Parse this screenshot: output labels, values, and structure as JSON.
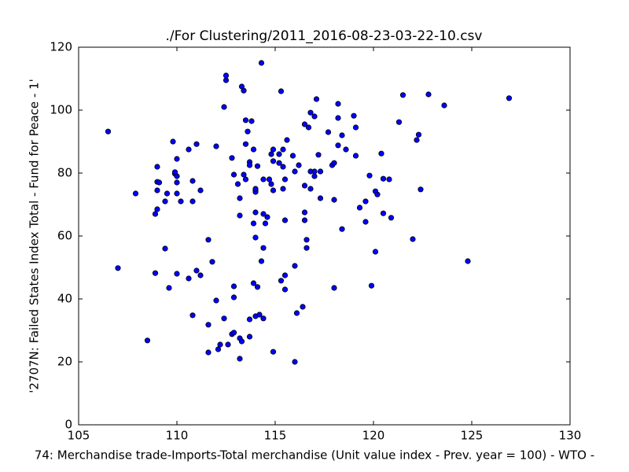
{
  "chart_data": {
    "type": "scatter",
    "title": "./For Clustering/2011_2016-08-23-03-22-10.csv",
    "x_label": "74: Merchandise trade-Imports-Total merchandise (Unit value index - Prev. year = 100) - WTO -",
    "y_label": "'2707N: Failed States Index Total - Fund for Peace - 1'",
    "xlim": [
      105,
      130
    ],
    "xticks": [
      105,
      110,
      115,
      120,
      125,
      130
    ],
    "ylim": [
      0,
      120
    ],
    "yticks": [
      0,
      20,
      40,
      60,
      80,
      100,
      120
    ],
    "color": "#0000ff",
    "edgecolor": "#000000",
    "x": [
      106.5,
      107.0,
      107.9,
      108.5,
      108.9,
      109.0,
      109.0,
      109.0,
      109.1,
      109.0,
      108.9,
      109.4,
      109.4,
      109.5,
      109.6,
      109.8,
      109.9,
      110.0,
      109.9,
      110.0,
      110.0,
      110.0,
      110.2,
      110.0,
      110.6,
      110.6,
      110.8,
      110.8,
      110.8,
      111.0,
      111.0,
      111.2,
      111.2,
      111.6,
      111.6,
      111.8,
      111.6,
      112.0,
      112.0,
      112.1,
      112.2,
      112.4,
      112.4,
      112.5,
      112.5,
      112.6,
      112.8,
      112.8,
      112.9,
      112.9,
      112.9,
      112.9,
      113.1,
      113.2,
      113.2,
      113.2,
      113.3,
      113.2,
      113.3,
      113.4,
      113.4,
      113.5,
      113.5,
      113.5,
      113.6,
      113.7,
      113.7,
      113.7,
      113.7,
      113.8,
      113.9,
      113.9,
      113.9,
      114.0,
      114.0,
      114.0,
      114.0,
      114.0,
      114.0,
      114.1,
      114.1,
      114.2,
      114.3,
      114.3,
      114.4,
      114.4,
      114.4,
      114.4,
      114.5,
      114.6,
      114.7,
      114.8,
      114.8,
      114.9,
      114.9,
      114.9,
      114.9,
      115.2,
      115.2,
      115.3,
      115.4,
      115.4,
      115.3,
      115.4,
      115.5,
      115.5,
      115.5,
      115.5,
      115.6,
      115.9,
      116.0,
      116.0,
      116.0,
      116.1,
      116.2,
      116.4,
      116.5,
      116.5,
      116.5,
      116.5,
      116.6,
      116.6,
      116.7,
      116.8,
      116.8,
      117.0,
      116.8,
      117.0,
      117.0,
      117.1,
      117.2,
      117.3,
      117.3,
      117.7,
      117.9,
      118.0,
      118.0,
      118.0,
      118.2,
      118.2,
      118.2,
      118.4,
      118.4,
      118.6,
      119.0,
      119.1,
      119.1,
      119.3,
      119.6,
      119.6,
      119.8,
      119.9,
      120.1,
      120.2,
      120.1,
      120.4,
      120.5,
      120.5,
      120.8,
      120.9,
      121.3,
      121.5,
      122.0,
      122.2,
      122.3,
      122.4,
      122.8,
      123.6,
      124.8,
      126.9
    ],
    "y": [
      93.2,
      49.8,
      73.5,
      26.8,
      67,
      82,
      74.5,
      77.2,
      77,
      68.5,
      48.2,
      56,
      71,
      73.5,
      43.5,
      90,
      79.8,
      79,
      80.3,
      84.5,
      77,
      73.5,
      71,
      48,
      87.5,
      46.5,
      77.5,
      71,
      34.8,
      89.2,
      49,
      47.5,
      74.5,
      58.8,
      31.8,
      51.8,
      23,
      88.5,
      39.5,
      24,
      25.5,
      101,
      33.8,
      111,
      109.5,
      25.5,
      84.8,
      28.8,
      29.3,
      79.5,
      44,
      40.5,
      76.5,
      72,
      66.5,
      27.5,
      26.5,
      21,
      107.5,
      106.2,
      79.5,
      78,
      96.8,
      89.2,
      93.2,
      83.5,
      82.5,
      33.5,
      28,
      96.5,
      87.5,
      64,
      45,
      74.5,
      74,
      75,
      67.5,
      59.5,
      34.5,
      82.2,
      43.8,
      35,
      115,
      52,
      78,
      67,
      56.2,
      33.8,
      64,
      66,
      78,
      86,
      76.5,
      87.5,
      74.5,
      83.8,
      23.2,
      83.2,
      86,
      106,
      87.5,
      82,
      45.8,
      75,
      78,
      65,
      47.5,
      43,
      90.5,
      85.5,
      80.5,
      50.5,
      20,
      35.5,
      82.5,
      37.5,
      95.5,
      76,
      67.5,
      65,
      58.8,
      56.2,
      94.5,
      99.2,
      80.5,
      80.5,
      75,
      98,
      79,
      103.5,
      85.8,
      80.5,
      72,
      93,
      82.5,
      83.2,
      71.5,
      43.5,
      102,
      97.5,
      88.8,
      92,
      62.2,
      87.5,
      98.2,
      94.5,
      85.5,
      69,
      71,
      64.5,
      79.2,
      44.2,
      74.2,
      73.2,
      55,
      86.2,
      78.2,
      67.2,
      78,
      65.8,
      96.2,
      104.8,
      59,
      90.5,
      92.2,
      74.8,
      105,
      101.5,
      52,
      103.8
    ]
  }
}
